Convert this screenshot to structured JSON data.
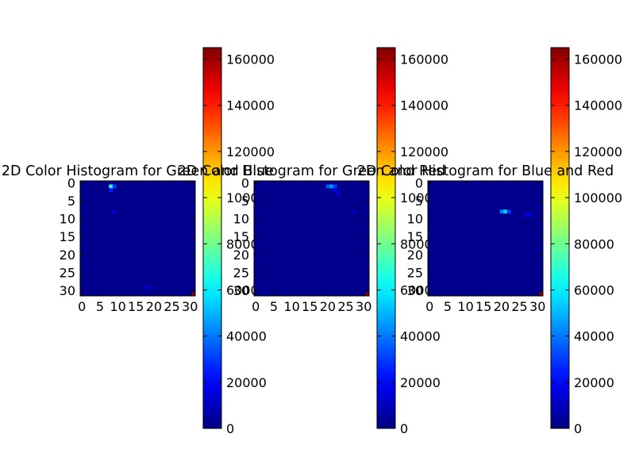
{
  "chart_data": [
    {
      "type": "heatmap",
      "title": "2D Color Histogram for Green and Blue",
      "xticks": [
        "0",
        "5",
        "10",
        "15",
        "20",
        "25",
        "30"
      ],
      "yticks": [
        "0",
        "5",
        "10",
        "15",
        "20",
        "25",
        "30"
      ],
      "xlim": [
        0,
        32
      ],
      "ylim": [
        32,
        0
      ],
      "grid_size": 32,
      "background_value": 2000,
      "cells": [
        {
          "row": 1,
          "col": 8,
          "value": 70000
        },
        {
          "row": 1,
          "col": 9,
          "value": 30000
        },
        {
          "row": 2,
          "col": 8,
          "value": 25000
        },
        {
          "row": 8,
          "col": 9,
          "value": 14000
        },
        {
          "row": 29,
          "col": 18,
          "value": 12000
        },
        {
          "row": 29,
          "col": 19,
          "value": 10000
        },
        {
          "row": 31,
          "col": 31,
          "value": 165000
        }
      ],
      "colorbar": {
        "min": 0,
        "max": 165000,
        "ticks": [
          "0",
          "20000",
          "40000",
          "60000",
          "80000",
          "100000",
          "120000",
          "140000",
          "160000"
        ]
      }
    },
    {
      "type": "heatmap",
      "title": "2D Color Histogram for Green and Red",
      "xticks": [
        "0",
        "5",
        "10",
        "15",
        "20",
        "25",
        "30"
      ],
      "yticks": [
        "0",
        "5",
        "10",
        "15",
        "20",
        "25",
        "30"
      ],
      "xlim": [
        0,
        32
      ],
      "ylim": [
        32,
        0
      ],
      "grid_size": 32,
      "background_value": 2000,
      "cells": [
        {
          "row": 1,
          "col": 20,
          "value": 35000
        },
        {
          "row": 1,
          "col": 21,
          "value": 45000
        },
        {
          "row": 1,
          "col": 22,
          "value": 30000
        },
        {
          "row": 2,
          "col": 22,
          "value": 20000
        },
        {
          "row": 3,
          "col": 23,
          "value": 15000
        },
        {
          "row": 8,
          "col": 27,
          "value": 12000
        },
        {
          "row": 31,
          "col": 31,
          "value": 165000
        }
      ],
      "colorbar": {
        "min": 0,
        "max": 165000,
        "ticks": [
          "0",
          "20000",
          "40000",
          "60000",
          "80000",
          "100000",
          "120000",
          "140000",
          "160000"
        ]
      }
    },
    {
      "type": "heatmap",
      "title": "2D Color Histogram for Blue and Red",
      "xticks": [
        "0",
        "5",
        "10",
        "15",
        "20",
        "25",
        "30"
      ],
      "yticks": [
        "0",
        "5",
        "10",
        "15",
        "20",
        "25",
        "30"
      ],
      "xlim": [
        0,
        32
      ],
      "ylim": [
        32,
        0
      ],
      "grid_size": 32,
      "background_value": 2000,
      "cells": [
        {
          "row": 8,
          "col": 20,
          "value": 40000
        },
        {
          "row": 8,
          "col": 21,
          "value": 55000
        },
        {
          "row": 8,
          "col": 22,
          "value": 30000
        },
        {
          "row": 9,
          "col": 27,
          "value": 18000
        },
        {
          "row": 9,
          "col": 28,
          "value": 14000
        },
        {
          "row": 31,
          "col": 31,
          "value": 165000
        }
      ],
      "colorbar": {
        "min": 0,
        "max": 165000,
        "ticks": [
          "0",
          "20000",
          "40000",
          "60000",
          "80000",
          "100000",
          "120000",
          "140000",
          "160000"
        ]
      }
    }
  ]
}
